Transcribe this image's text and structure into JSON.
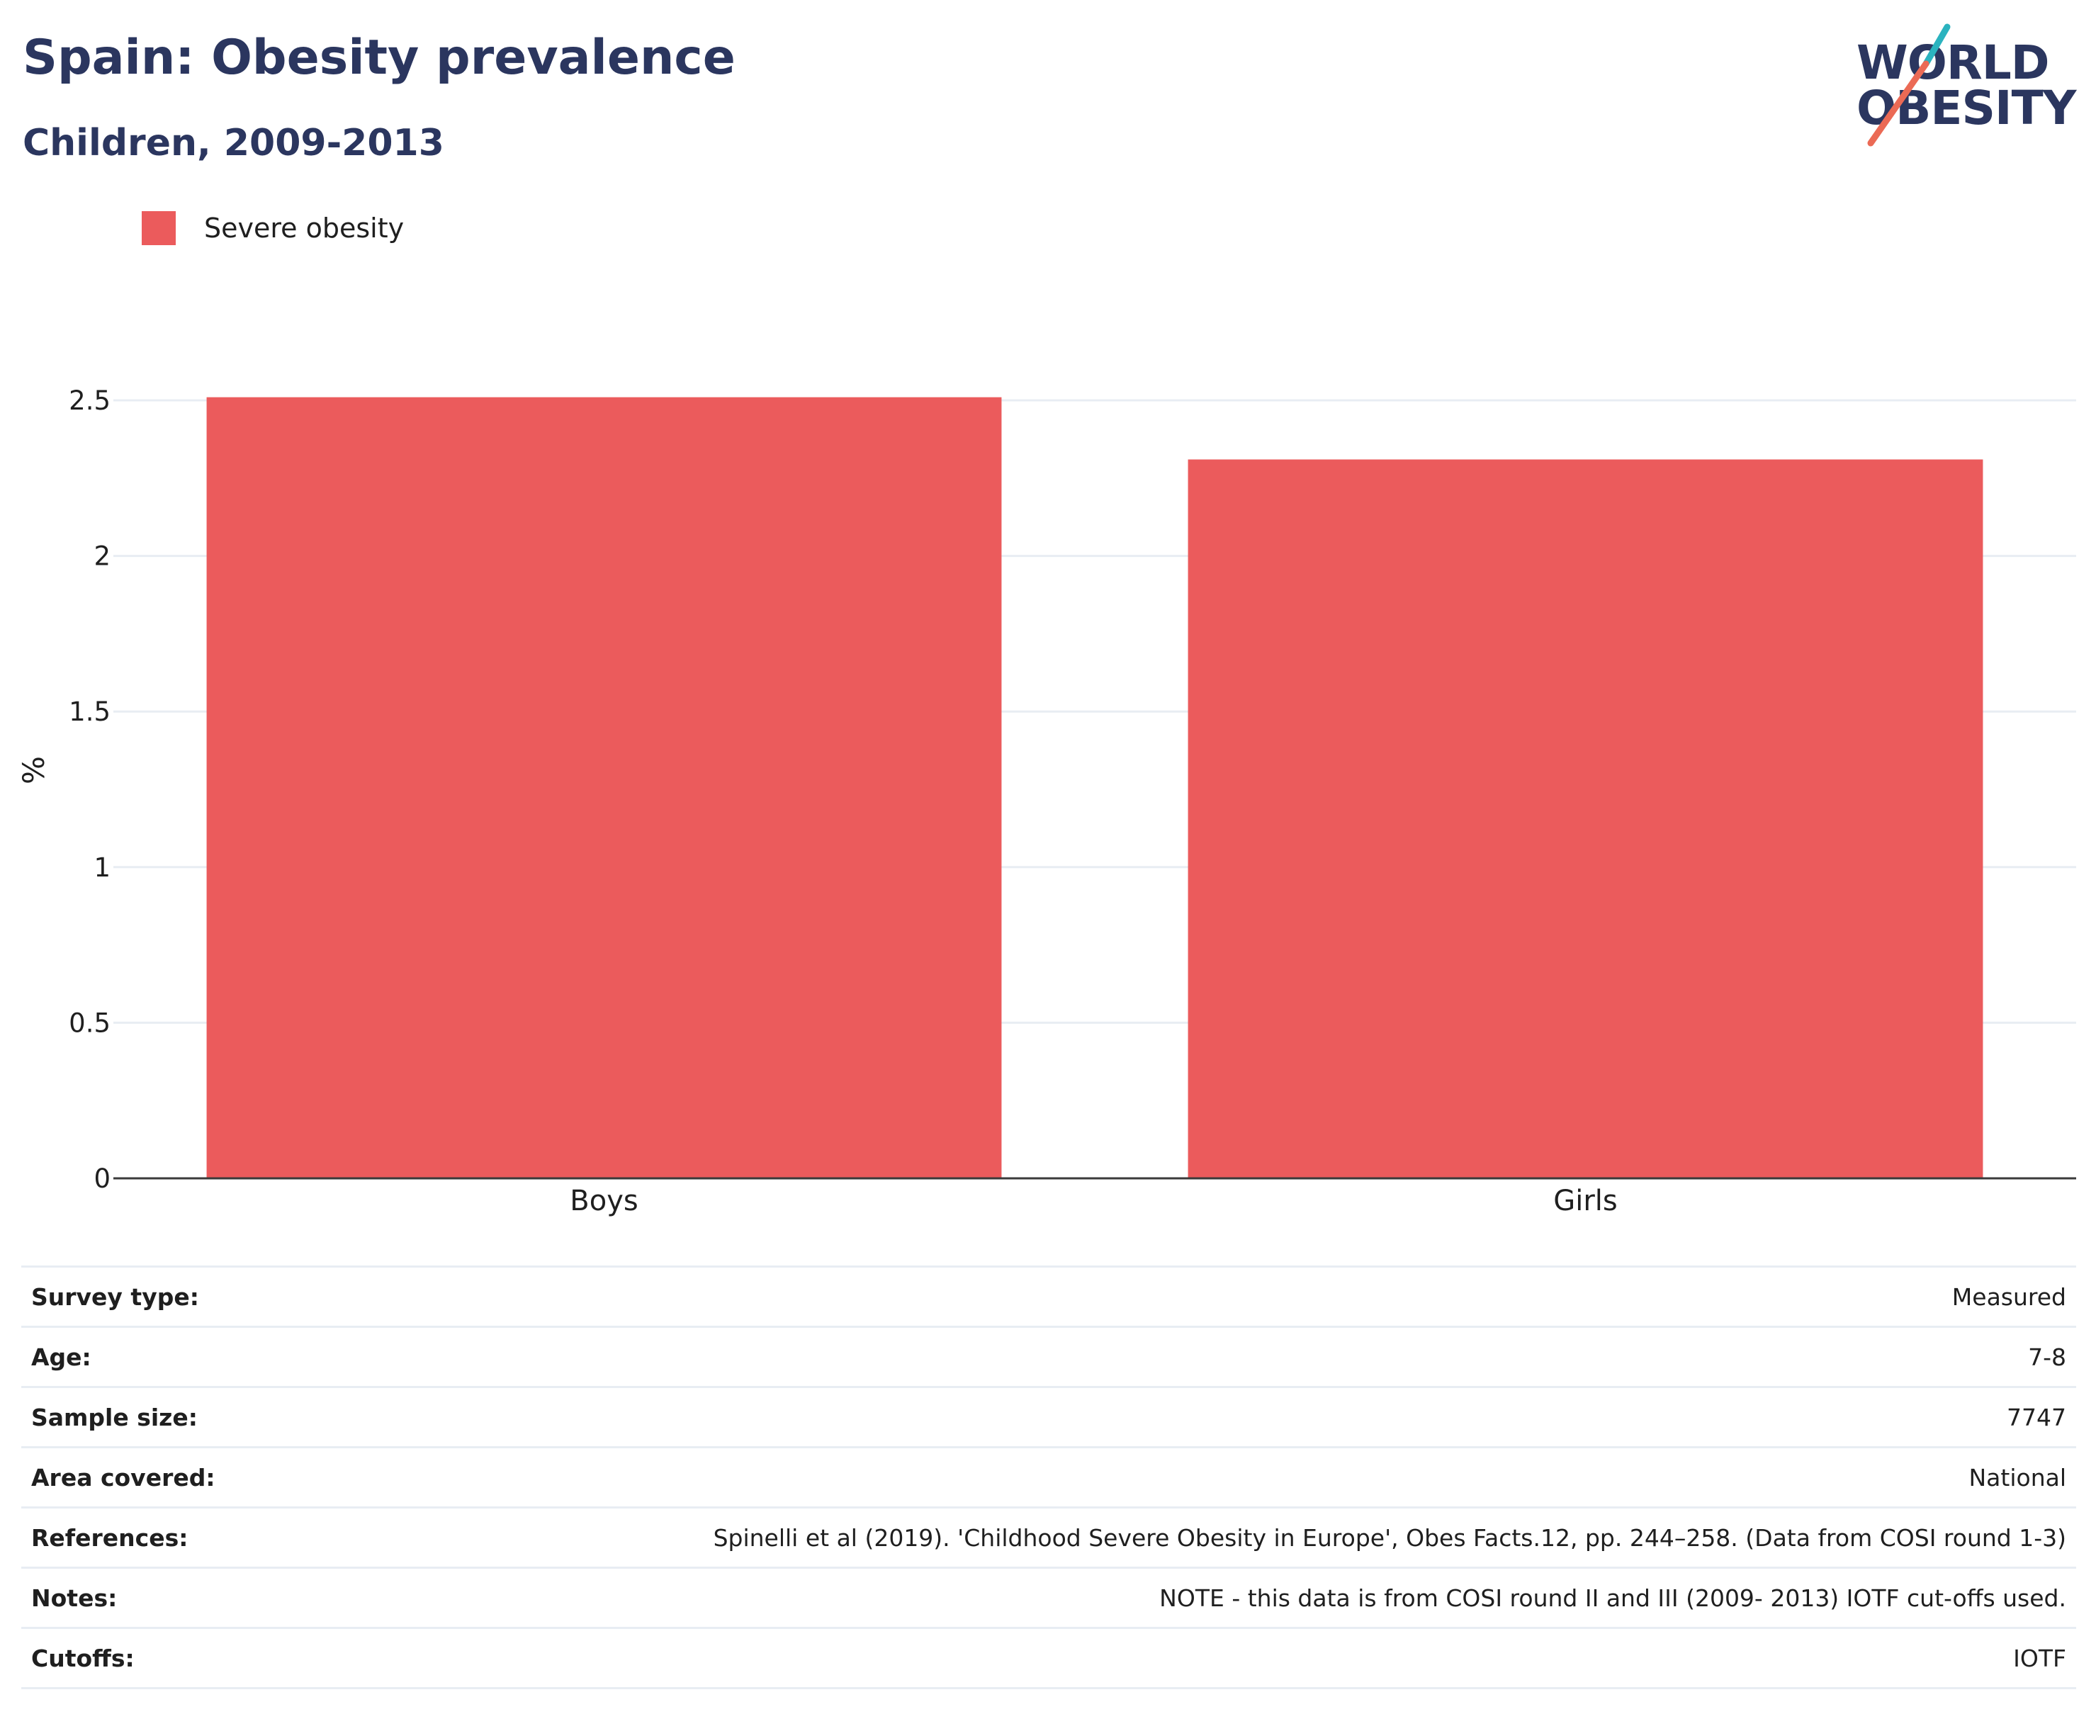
{
  "header": {
    "title": "Spain: Obesity prevalence",
    "subtitle": "Children, 2009-2013"
  },
  "logo": {
    "line1": "WORLD",
    "line2": "OBESITY",
    "colors": {
      "text": "#2b365f",
      "teal_slash": "#2bb3bf",
      "coral_slash": "#eb6a55"
    }
  },
  "chart_data": {
    "type": "bar",
    "title": "Spain: Obesity prevalence",
    "subtitle": "Children, 2009-2013",
    "categories": [
      "Boys",
      "Girls"
    ],
    "series": [
      {
        "name": "Severe obesity",
        "values": [
          2.51,
          2.31
        ],
        "color": "#eb5b5c"
      }
    ],
    "xlabel": "",
    "ylabel": "%",
    "ylim": [
      0,
      2.5
    ],
    "yticks": [
      0,
      0.5,
      1,
      1.5,
      2,
      2.5
    ],
    "ytick_labels": [
      "0",
      "0.5",
      "1",
      "1.5",
      "2",
      "2.5"
    ],
    "grid": true,
    "legend_position": "top-left"
  },
  "info": [
    {
      "key": "Survey type:",
      "value": "Measured"
    },
    {
      "key": "Age:",
      "value": "7-8"
    },
    {
      "key": "Sample size:",
      "value": "7747"
    },
    {
      "key": "Area covered:",
      "value": "National"
    },
    {
      "key": "References:",
      "value": "Spinelli et al (2019). 'Childhood Severe Obesity in Europe', Obes Facts.12, pp. 244–258. (Data from COSI round 1-3)"
    },
    {
      "key": "Notes:",
      "value": "NOTE - this data is from COSI round II and III (2009- 2013) IOTF cut-offs used."
    },
    {
      "key": "Cutoffs:",
      "value": "IOTF"
    }
  ]
}
